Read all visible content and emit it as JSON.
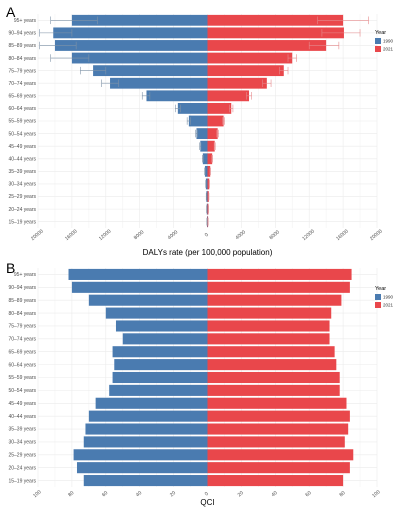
{
  "chart_data": [
    {
      "type": "bar",
      "panel_label": "A",
      "orientation": "horizontal-diverging",
      "categories": [
        "15–19 years",
        "20–24 years",
        "25–29 years",
        "30–34 years",
        "35–39 years",
        "40–44 years",
        "45–49 years",
        "50–54 years",
        "55–59 years",
        "60–64 years",
        "65–69 years",
        "70–74 years",
        "75–79 years",
        "80–84 years",
        "85–89 years",
        "90–94 years",
        "95+ years"
      ],
      "series": [
        {
          "name": "1990",
          "color": "#4a7bb0",
          "direction": "left",
          "values": [
            60,
            90,
            130,
            190,
            300,
            550,
            850,
            1300,
            2200,
            3500,
            7200,
            11500,
            13500,
            16000,
            18000,
            18200,
            16000
          ],
          "error_low": [
            50,
            75,
            110,
            170,
            270,
            500,
            780,
            1200,
            2000,
            3200,
            6800,
            10500,
            12000,
            14000,
            15500,
            16000,
            13000
          ],
          "error_high": [
            70,
            105,
            150,
            210,
            330,
            600,
            920,
            1400,
            2400,
            3800,
            7700,
            12500,
            15000,
            18500,
            19800,
            19800,
            18500
          ]
        },
        {
          "name": "2021",
          "color": "#e9474b",
          "direction": "right",
          "values": [
            70,
            110,
            150,
            210,
            320,
            550,
            850,
            1200,
            1900,
            2800,
            4900,
            7000,
            9000,
            10000,
            14000,
            16100,
            16000
          ],
          "error_low": [
            60,
            95,
            130,
            190,
            290,
            500,
            790,
            1100,
            1800,
            2600,
            4600,
            6500,
            8500,
            9500,
            12000,
            13500,
            13000
          ],
          "error_high": [
            80,
            125,
            170,
            230,
            350,
            600,
            910,
            1300,
            2000,
            3000,
            5200,
            7500,
            9500,
            10500,
            15500,
            18000,
            19000
          ]
        }
      ],
      "xticks": [
        "20000",
        "16000",
        "12000",
        "8000",
        "4000",
        "0",
        "4000",
        "8000",
        "12000",
        "16000",
        "20000"
      ],
      "xlim": [
        -20000,
        20000
      ],
      "xlabel": "DALYs rate (per 100,000 population)",
      "legend_title": "Year",
      "legend_position": "right",
      "grid": true
    },
    {
      "type": "bar",
      "panel_label": "B",
      "orientation": "horizontal-diverging",
      "categories": [
        "15–19 years",
        "20–24 years",
        "25–29 years",
        "30–34 years",
        "35–39 years",
        "40–44 years",
        "45–49 years",
        "50–54 years",
        "55–59 years",
        "60–64 years",
        "65–69 years",
        "70–74 years",
        "75–79 years",
        "80–84 years",
        "85–89 years",
        "90–94 years",
        "95+ years"
      ],
      "series": [
        {
          "name": "1990",
          "color": "#4a7bb0",
          "direction": "left",
          "values": [
            73,
            77,
            79,
            73,
            72,
            70,
            66,
            58,
            56,
            55,
            56,
            50,
            54,
            60,
            70,
            80,
            82
          ]
        },
        {
          "name": "2021",
          "color": "#e9474b",
          "direction": "right",
          "values": [
            80,
            84,
            86,
            81,
            83,
            84,
            82,
            78,
            78,
            76,
            75,
            72,
            72,
            73,
            79,
            84,
            85
          ]
        }
      ],
      "xticks": [
        "100",
        "80",
        "60",
        "40",
        "20",
        "0",
        "20",
        "40",
        "60",
        "80",
        "100"
      ],
      "xlim": [
        -100,
        100
      ],
      "xlabel": "QCI",
      "legend_title": "Year",
      "legend_position": "right",
      "grid": true
    }
  ]
}
